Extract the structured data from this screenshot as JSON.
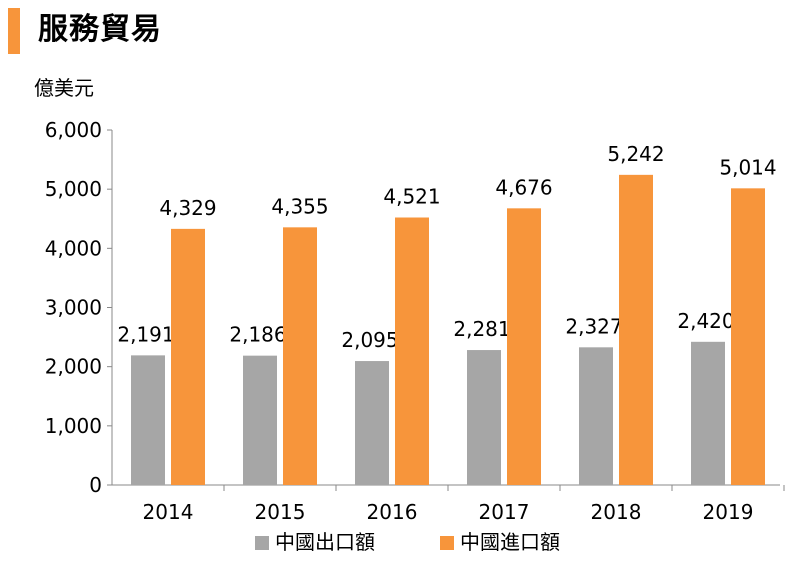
{
  "title": "服務貿易",
  "unit": "億美元",
  "colors": {
    "export": "#A6A6A6",
    "import": "#F7953B",
    "accent": "#F7953B",
    "axis": "#888888"
  },
  "chart_data": {
    "type": "bar",
    "title": "服務貿易",
    "ylabel": "億美元",
    "xlabel": "",
    "categories": [
      "2014",
      "2015",
      "2016",
      "2017",
      "2018",
      "2019"
    ],
    "ylim": [
      0,
      6000
    ],
    "yticks": [
      0,
      1000,
      2000,
      3000,
      4000,
      5000,
      6000
    ],
    "ytick_labels": [
      "0",
      "1,000",
      "2,000",
      "3,000",
      "4,000",
      "5,000",
      "6,000"
    ],
    "grid": false,
    "legend": "bottom",
    "series": [
      {
        "name": "中國出口額",
        "color": "#A6A6A6",
        "values": [
          2191,
          2186,
          2095,
          2281,
          2327,
          2420
        ],
        "labels": [
          "2,191",
          "2,186",
          "2,095",
          "2,281",
          "2,327",
          "2,420"
        ]
      },
      {
        "name": "中國進口額",
        "color": "#F7953B",
        "values": [
          4329,
          4355,
          4521,
          4676,
          5242,
          5014
        ],
        "labels": [
          "4,329",
          "4,355",
          "4,521",
          "4,676",
          "5,242",
          "5,014"
        ]
      }
    ]
  }
}
